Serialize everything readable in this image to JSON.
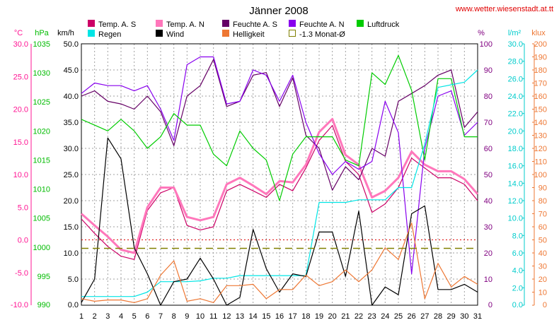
{
  "chart_data": {
    "type": "line",
    "title": "Jänner 2008",
    "source_url": "www.wetter.wiesenstadt.at.tt",
    "days": [
      1,
      2,
      3,
      4,
      5,
      6,
      7,
      8,
      9,
      10,
      11,
      12,
      13,
      14,
      15,
      16,
      17,
      18,
      19,
      20,
      21,
      22,
      23,
      24,
      25,
      26,
      27,
      28,
      29,
      30,
      31
    ],
    "axes": [
      {
        "id": "temp",
        "unit": "°C",
        "min": -10,
        "max": 30,
        "step": 5,
        "decimals": 1,
        "color": "#ff1493",
        "side": "left"
      },
      {
        "id": "press",
        "unit": "hPa",
        "min": 990,
        "max": 1035,
        "step": 5,
        "decimals": 0,
        "color": "#00bb00",
        "side": "left"
      },
      {
        "id": "wind",
        "unit": "km/h",
        "min": 0,
        "max": 50,
        "step": 5,
        "decimals": 1,
        "color": "#000000",
        "side": "left"
      },
      {
        "id": "hum",
        "unit": "%",
        "min": 0,
        "max": 100,
        "step": 10,
        "decimals": 0,
        "color": "#800080",
        "side": "right"
      },
      {
        "id": "rain",
        "unit": "l/m²",
        "min": 0,
        "max": 30,
        "step": 2,
        "decimals": 1,
        "color": "#00cccc",
        "side": "right"
      },
      {
        "id": "lux",
        "unit": "klux",
        "min": 0,
        "max": 200,
        "step": 10,
        "decimals": 0,
        "color": "#ee7733",
        "side": "right"
      }
    ],
    "series": [
      {
        "name": "Temp. A. S",
        "axis": "temp",
        "color": "#cc0066",
        "width": 1.2,
        "values": [
          3.2,
          1.0,
          -1.0,
          -2.5,
          -3.0,
          4.5,
          7.2,
          8.0,
          2.2,
          1.5,
          2.0,
          7.5,
          8.5,
          7.5,
          6.5,
          8.5,
          7.5,
          11.0,
          15.2,
          17.5,
          12.0,
          10.0,
          4.2,
          5.5,
          8.0,
          12.5,
          11.0,
          9.5,
          9.5,
          8.5,
          6.0
        ]
      },
      {
        "name": "Temp. A. N",
        "axis": "temp",
        "color": "#ff77bb",
        "width": 3,
        "values": [
          4.0,
          2.2,
          0.5,
          -1.5,
          -2.0,
          5.0,
          8.0,
          8.0,
          3.5,
          3.0,
          3.5,
          8.5,
          9.5,
          8.3,
          7.0,
          9.0,
          8.8,
          11.5,
          16.5,
          18.5,
          13.0,
          11.5,
          6.5,
          7.5,
          9.5,
          13.5,
          11.5,
          10.5,
          10.5,
          9.3,
          7.0
        ]
      },
      {
        "name": "Feuchte A. S",
        "axis": "hum",
        "color": "#660066",
        "width": 1.2,
        "values": [
          80,
          82,
          78,
          77,
          75,
          80,
          74,
          61,
          80,
          84,
          94,
          76,
          78,
          88,
          89,
          76,
          87,
          65,
          60,
          44,
          53,
          48,
          60,
          57,
          78,
          81,
          84,
          88,
          90,
          68,
          74
        ]
      },
      {
        "name": "Feuchte A. N",
        "axis": "hum",
        "color": "#8800ee",
        "width": 1.2,
        "values": [
          81,
          85,
          84,
          84,
          82,
          84,
          75,
          63,
          92,
          95,
          95,
          77,
          78,
          90,
          88,
          78,
          88,
          70,
          58,
          50,
          55,
          52,
          55,
          78,
          66,
          12,
          60,
          80,
          82,
          65,
          70
        ]
      },
      {
        "name": "Luftdruck",
        "axis": "press",
        "color": "#00cc00",
        "width": 1.2,
        "values": [
          1022,
          1021,
          1020,
          1022,
          1020,
          1017,
          1019,
          1023,
          1021,
          1021,
          1016,
          1014,
          1020,
          1017,
          1015,
          1008,
          1016,
          1019,
          1019,
          1019,
          1015,
          1014,
          1030,
          1028,
          1033,
          1027,
          1015,
          1029,
          1029,
          1019,
          1019
        ]
      },
      {
        "name": "Regen",
        "axis": "rain",
        "color": "#00e5e5",
        "width": 1.2,
        "values": [
          1.0,
          1.0,
          1.0,
          1.0,
          1.0,
          1.5,
          2.7,
          2.7,
          2.7,
          2.8,
          3.1,
          3.1,
          3.4,
          3.4,
          3.4,
          3.4,
          3.4,
          3.4,
          11.8,
          11.8,
          11.8,
          12.1,
          12.1,
          12.1,
          13.5,
          13.5,
          18.5,
          25.0,
          25.3,
          25.6,
          27.0
        ]
      },
      {
        "name": "Wind",
        "axis": "wind",
        "color": "#000000",
        "width": 1.2,
        "values": [
          0.5,
          5.0,
          32.0,
          28.0,
          11.0,
          6.0,
          0.0,
          4.5,
          5.0,
          9.0,
          5.0,
          0.0,
          1.5,
          14.5,
          7.0,
          2.5,
          6.0,
          5.5,
          14.0,
          14.0,
          5.5,
          18.0,
          0.0,
          3.5,
          2.0,
          17.5,
          19.0,
          3.0,
          3.0,
          4.0,
          2.5
        ]
      },
      {
        "name": "Helligkeit",
        "axis": "lux",
        "color": "#ee7733",
        "width": 1.2,
        "values": [
          5,
          3,
          4,
          4,
          2,
          5,
          23,
          34,
          3,
          5,
          2,
          15,
          15,
          16,
          5,
          12,
          12,
          23,
          15,
          18,
          27,
          18,
          27,
          44,
          35,
          63,
          5,
          32,
          14,
          22,
          16
        ]
      },
      {
        "name": "-1.3 Monat-Ø",
        "axis": "temp",
        "color": "#808000",
        "width": 1,
        "dash": "10,6",
        "constant": -1.3
      }
    ],
    "reference_lines": [
      {
        "axis": "temp",
        "value": 0,
        "color": "#dd0000",
        "dash": "2,3"
      }
    ],
    "grid": true
  },
  "labels": {
    "title": "Jänner 2008",
    "url": "www.wetter.wiesenstadt.at.tt"
  }
}
